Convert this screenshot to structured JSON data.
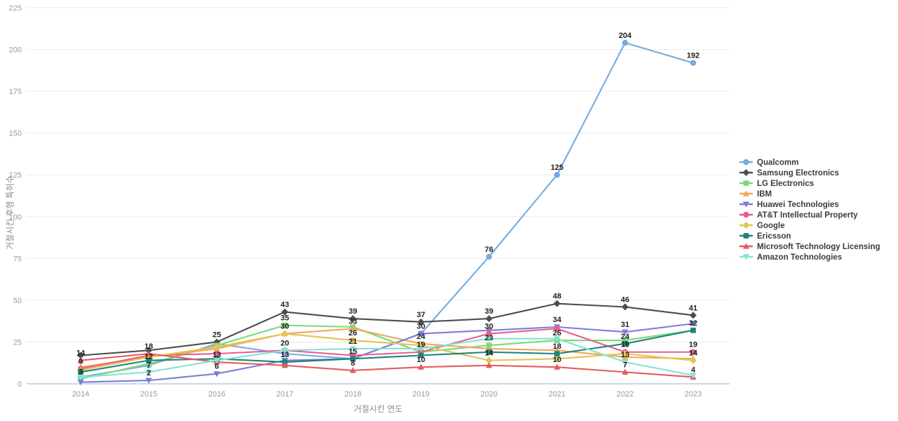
{
  "chart_data": {
    "type": "line",
    "x": [
      "2014",
      "2015",
      "2016",
      "2017",
      "2018",
      "2019",
      "2020",
      "2021",
      "2022",
      "2023"
    ],
    "xlabel": "거절시킨 연도",
    "ylabel": "거절시킨 후행 특허수",
    "ylim": [
      0,
      225
    ],
    "ytick_step": 25,
    "grid": true,
    "legend_position": "right",
    "series": [
      {
        "name": "Qualcomm",
        "color": "#76ABDF",
        "marker": "circle",
        "values": [
          4,
          11,
          24,
          18,
          15,
          30,
          76,
          125,
          204,
          192
        ],
        "point_labels": [
          null,
          null,
          null,
          null,
          null,
          null,
          76,
          125,
          204,
          192
        ]
      },
      {
        "name": "Samsung Electronics",
        "color": "#4D4D4D",
        "marker": "diamond",
        "values": [
          17,
          20,
          25,
          43,
          39,
          37,
          39,
          48,
          46,
          41
        ],
        "point_labels": [
          null,
          null,
          25,
          43,
          39,
          37,
          39,
          48,
          46,
          41
        ]
      },
      {
        "name": "LG Electronics",
        "color": "#79DA7A",
        "marker": "square",
        "values": [
          3,
          12,
          23,
          35,
          34,
          19,
          23,
          26,
          26,
          32
        ],
        "point_labels": [
          3,
          12,
          null,
          35,
          null,
          null,
          23,
          26,
          null,
          null
        ]
      },
      {
        "name": "IBM",
        "color": "#F6A557",
        "marker": "triangle",
        "values": [
          10,
          16,
          21,
          30,
          33,
          24,
          21,
          20,
          16,
          15
        ],
        "point_labels": [
          null,
          null,
          null,
          null,
          33,
          24,
          null,
          null,
          null,
          null
        ]
      },
      {
        "name": "Huawei Technologies",
        "color": "#7E7CDA",
        "marker": "triangle-down",
        "values": [
          1,
          2,
          6,
          14,
          15,
          30,
          32,
          34,
          31,
          36
        ],
        "point_labels": [
          null,
          2,
          6,
          null,
          null,
          30,
          null,
          34,
          31,
          null
        ]
      },
      {
        "name": "AT&T Intellectual Property",
        "color": "#E95D8C",
        "marker": "circle",
        "values": [
          9,
          17,
          18,
          20,
          17,
          19,
          30,
          33,
          19,
          19
        ],
        "point_labels": [
          9,
          null,
          null,
          20,
          null,
          19,
          30,
          null,
          19,
          19
        ]
      },
      {
        "name": "Google",
        "color": "#E3C550",
        "marker": "diamond",
        "values": [
          8,
          16,
          22,
          30,
          26,
          23,
          14,
          15,
          18,
          14
        ],
        "point_labels": [
          null,
          null,
          null,
          30,
          26,
          null,
          14,
          null,
          null,
          14
        ]
      },
      {
        "name": "Ericsson",
        "color": "#1F837B",
        "marker": "square",
        "values": [
          7,
          14,
          15,
          13,
          15,
          17,
          19,
          18,
          24,
          32
        ],
        "point_labels": [
          null,
          null,
          null,
          13,
          15,
          null,
          null,
          18,
          24,
          32
        ]
      },
      {
        "name": "Microsoft Technology Licensing",
        "color": "#E65C5C",
        "marker": "triangle",
        "values": [
          14,
          18,
          13,
          11,
          8,
          10,
          11,
          10,
          7,
          4
        ],
        "point_labels": [
          14,
          18,
          13,
          null,
          8,
          10,
          null,
          10,
          7,
          4
        ]
      },
      {
        "name": "Amazon Technologies",
        "color": "#83E3D3",
        "marker": "triangle-down",
        "values": [
          4,
          7,
          14,
          20,
          21,
          21,
          27,
          27,
          13,
          5
        ],
        "point_labels": [
          null,
          7,
          null,
          null,
          21,
          null,
          null,
          null,
          13,
          null
        ]
      }
    ]
  },
  "colors": {
    "grid": "#ebebeb",
    "baseline": "#b7cde6",
    "tick_text": "#9a9a9a",
    "axis_title": "#8c8c8c",
    "point_label": "#1f1f1f",
    "legend_text": "#3c3c3c",
    "background": "#ffffff"
  }
}
